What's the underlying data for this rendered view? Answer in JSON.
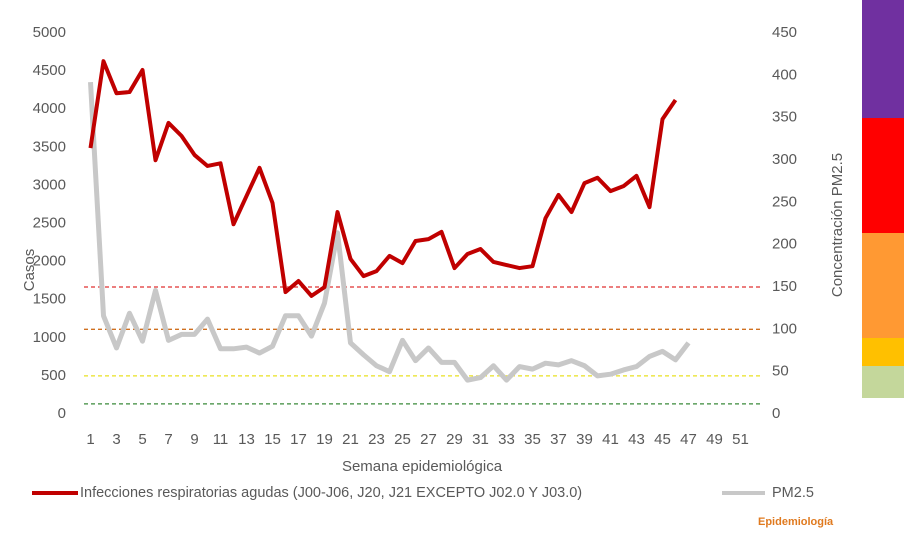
{
  "chart_data": {
    "type": "line",
    "x_label": "Semana epidemiológica",
    "y_label": "Casos",
    "y2_label": "Concentración PM2.5",
    "footer": "Epidemiología",
    "categories": [
      1,
      null,
      3,
      null,
      5,
      null,
      7,
      null,
      9,
      null,
      11,
      null,
      13,
      null,
      15,
      null,
      17,
      null,
      19,
      null,
      21,
      null,
      23,
      null,
      25,
      null,
      27,
      null,
      29,
      null,
      31,
      null,
      33,
      null,
      35,
      null,
      37,
      null,
      39,
      null,
      41,
      null,
      43,
      null,
      45,
      null,
      47,
      null,
      49,
      null,
      51,
      null
    ],
    "ylim": [
      0,
      5000
    ],
    "yticks": [
      0,
      500,
      1000,
      1500,
      2000,
      2500,
      3000,
      3500,
      4000,
      4500,
      5000
    ],
    "y2lim": [
      0,
      450
    ],
    "y2ticks": [
      0,
      50,
      100,
      150,
      200,
      250,
      300,
      350,
      400,
      450
    ],
    "series": [
      {
        "name": "Infecciones respiratorias agudas (J00-J06, J20, J21 EXCEPTO J02.0 Y J03.0)",
        "color": "#c00000",
        "values": [
          3490,
          4630,
          4210,
          4225,
          4515,
          3330,
          3820,
          3650,
          3400,
          3255,
          3290,
          2490,
          2860,
          3230,
          2770,
          1600,
          1745,
          1550,
          1665,
          2650,
          2035,
          1810,
          1875,
          2075,
          1980,
          2270,
          2295,
          2390,
          1915,
          2100,
          2165,
          1995,
          1955,
          1915,
          1940,
          2570,
          2875,
          2650,
          3030,
          3100,
          2925,
          2990,
          3125,
          2715,
          3870,
          4120,
          null,
          null,
          null,
          null,
          null,
          null
        ]
      },
      {
        "name": "PM2.5",
        "color": "#c8c8c8",
        "axis": "y2",
        "values": [
          392,
          116,
          78,
          119,
          86,
          146,
          87,
          94,
          94,
          112,
          77,
          77,
          79,
          72,
          80,
          116,
          116,
          92,
          131,
          214,
          84,
          70,
          57,
          50,
          87,
          63,
          78,
          61,
          61,
          40,
          43,
          57,
          40,
          56,
          53,
          60,
          58,
          63,
          57,
          45,
          47,
          52,
          56,
          68,
          74,
          64,
          84,
          null,
          null,
          null,
          null,
          null
        ]
      }
    ],
    "reference_lines": [
      {
        "value": 150,
        "color": "#e03030",
        "axis": "y2"
      },
      {
        "value": 100,
        "color": "#d07020",
        "axis": "y2"
      },
      {
        "value": 45,
        "color": "#e8e020",
        "axis": "y2"
      },
      {
        "value": 12,
        "color": "#3a8a3a",
        "axis": "y2"
      }
    ]
  }
}
